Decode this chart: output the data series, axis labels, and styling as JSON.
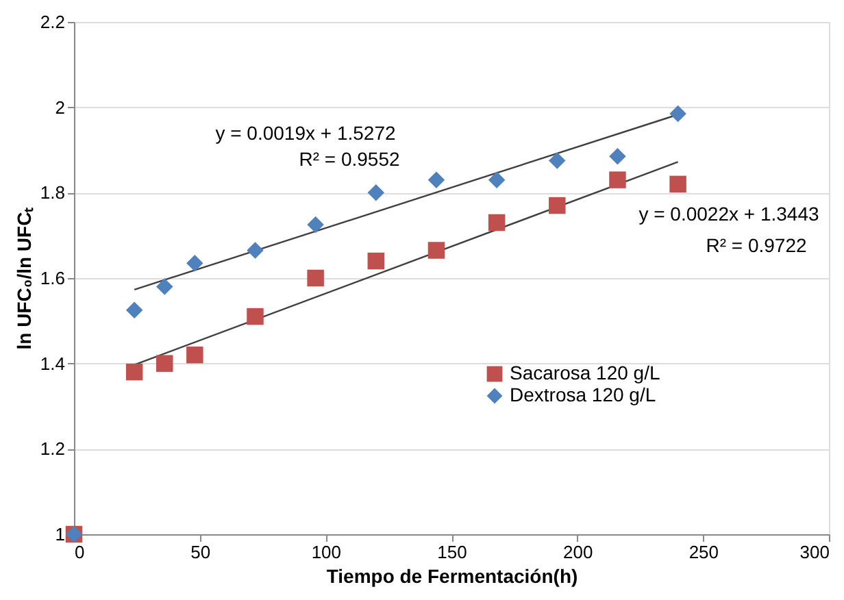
{
  "chart_data": {
    "type": "scatter",
    "xlabel": "Tiempo de Fermentación(h)",
    "ylabel": "ln UFC₀/ln UFCₜ",
    "xlim": [
      0,
      300
    ],
    "xticks": [
      0,
      50,
      100,
      150,
      200,
      250,
      300
    ],
    "ylim": [
      1,
      2.2
    ],
    "yticks": [
      1,
      1.2,
      1.4,
      1.6,
      1.8,
      2,
      2.2
    ],
    "grid": "y",
    "legend": "right",
    "series": [
      {
        "name": "Sacarosa 120 g/L",
        "color": "#c0504d",
        "marker": "square",
        "x": [
          0,
          24,
          36,
          48,
          72,
          96,
          120,
          144,
          168,
          192,
          216,
          240
        ],
        "values": [
          1.0,
          1.38,
          1.4,
          1.42,
          1.51,
          1.6,
          1.64,
          1.665,
          1.73,
          1.77,
          1.83,
          1.82
        ]
      },
      {
        "name": "Dextrosa 120 g/L",
        "color": "#4f81bd",
        "marker": "diamond",
        "x": [
          0,
          24,
          36,
          48,
          72,
          96,
          120,
          144,
          168,
          192,
          216,
          240
        ],
        "values": [
          1.0,
          1.525,
          1.58,
          1.635,
          1.665,
          1.725,
          1.8,
          1.83,
          1.83,
          1.875,
          1.885,
          1.985
        ]
      },
      {
        "type": "line",
        "color": "#404040",
        "marker": "none",
        "x": [
          24,
          240
        ],
        "values": [
          1.397,
          1.872
        ]
      },
      {
        "type": "line",
        "color": "#404040",
        "marker": "none",
        "x": [
          24,
          240
        ],
        "values": [
          1.573,
          1.983
        ]
      }
    ],
    "annotations": [
      "y = 0.0019x + 1.5272",
      "R² = 0.9552",
      "y = 0.0022x + 1.3443",
      "R² = 0.9722"
    ]
  }
}
